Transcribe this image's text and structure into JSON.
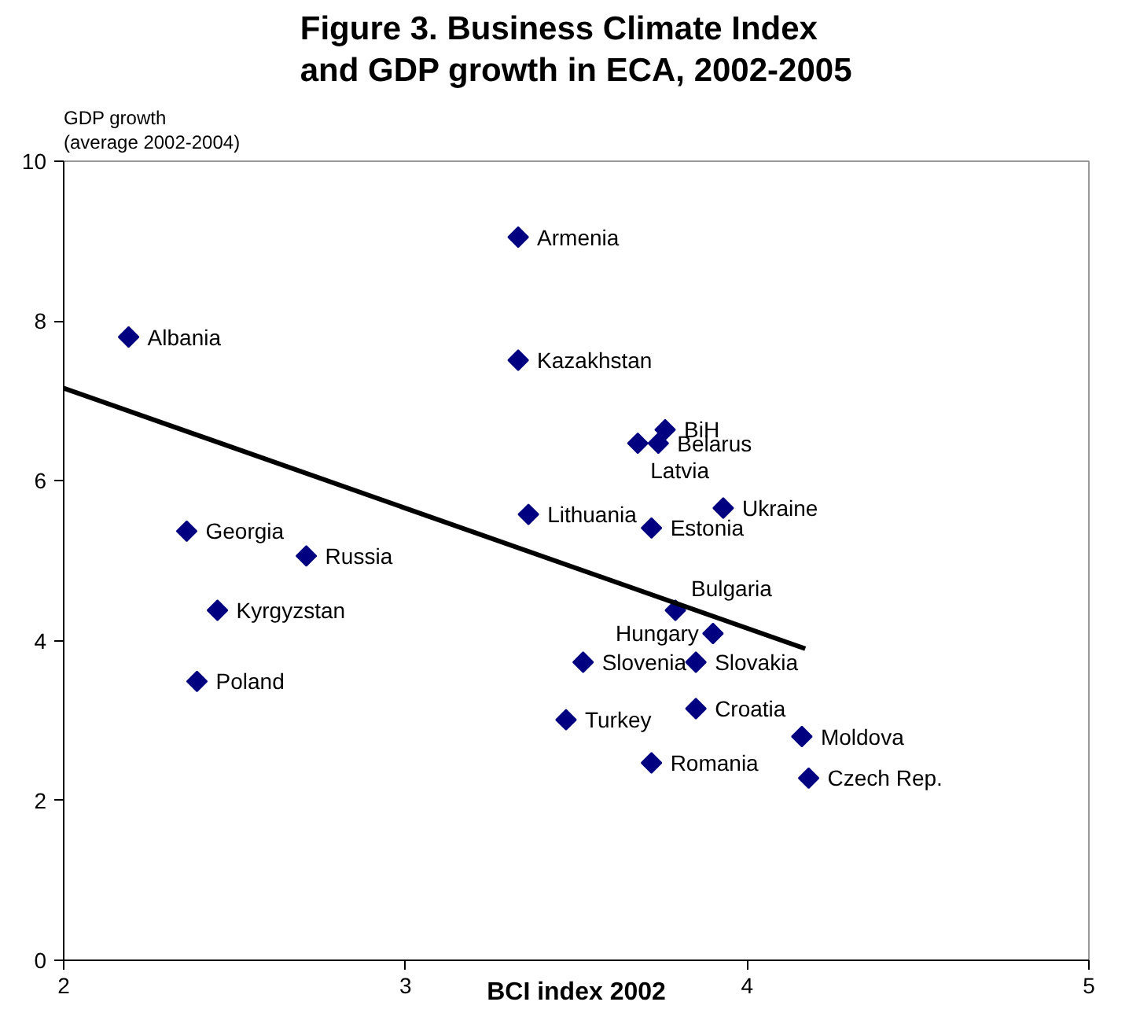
{
  "chart_data": {
    "type": "scatter",
    "title": "Figure 3. Business Climate Index\nand GDP growth in ECA, 2002-2005",
    "xlabel": "BCI index 2002",
    "ylabel": "GDP growth\n(average 2002-2004)",
    "xlim": [
      2,
      5
    ],
    "xticks": [
      2,
      3,
      4,
      5
    ],
    "ylim": [
      0,
      10
    ],
    "yticks": [
      0,
      2,
      4,
      6,
      8,
      10
    ],
    "grid": false,
    "series": [
      {
        "type": "scatter",
        "marker": "diamond",
        "color": "#000080",
        "x": [
          2.19,
          2.36,
          2.71,
          2.45,
          3.33,
          3.33,
          3.76,
          3.68,
          3.74,
          3.36,
          3.72,
          3.93,
          3.79,
          3.9,
          3.52,
          3.85,
          2.39,
          3.47,
          3.85,
          4.16,
          3.72,
          4.18
        ],
        "values": [
          7.8,
          5.37,
          5.06,
          4.38,
          9.05,
          7.51,
          6.64,
          6.47,
          6.47,
          5.58,
          5.41,
          5.66,
          4.38,
          4.09,
          3.73,
          3.73,
          3.49,
          3.01,
          3.15,
          2.8,
          2.47,
          2.28
        ]
      },
      {
        "type": "line",
        "marker": "none",
        "color": "#000000",
        "x": [
          2,
          4.17
        ],
        "values": [
          7.16,
          3.9
        ]
      }
    ],
    "annotations": [
      {
        "text": "Albania",
        "x": 2.19,
        "y": 7.8
      },
      {
        "text": "Georgia",
        "x": 2.36,
        "y": 5.37
      },
      {
        "text": "Russia",
        "x": 2.71,
        "y": 5.06
      },
      {
        "text": "Kyrgyzstan",
        "x": 2.45,
        "y": 4.38
      },
      {
        "text": "Armenia",
        "x": 3.33,
        "y": 9.05
      },
      {
        "text": "Kazakhstan",
        "x": 3.33,
        "y": 7.51
      },
      {
        "text": "BiH",
        "x": 3.76,
        "y": 6.64
      },
      {
        "text": "Latvia",
        "x": 3.68,
        "y": 6.47
      },
      {
        "text": "Belarus",
        "x": 3.74,
        "y": 6.47
      },
      {
        "text": "Lithuania",
        "x": 3.36,
        "y": 5.58
      },
      {
        "text": "Estonia",
        "x": 3.72,
        "y": 5.41
      },
      {
        "text": "Ukraine",
        "x": 3.93,
        "y": 5.66
      },
      {
        "text": "Bulgaria",
        "x": 3.79,
        "y": 4.38
      },
      {
        "text": "Hungary",
        "x": 3.9,
        "y": 4.09
      },
      {
        "text": "Slovenia",
        "x": 3.52,
        "y": 3.73
      },
      {
        "text": "Slovakia",
        "x": 3.85,
        "y": 3.73
      },
      {
        "text": "Poland",
        "x": 2.39,
        "y": 3.49
      },
      {
        "text": "Turkey",
        "x": 3.47,
        "y": 3.01
      },
      {
        "text": "Croatia",
        "x": 3.85,
        "y": 3.15
      },
      {
        "text": "Moldova",
        "x": 4.16,
        "y": 2.8
      },
      {
        "text": "Romania",
        "x": 3.72,
        "y": 2.47
      },
      {
        "text": "Czech Rep.",
        "x": 4.18,
        "y": 2.28
      }
    ]
  }
}
